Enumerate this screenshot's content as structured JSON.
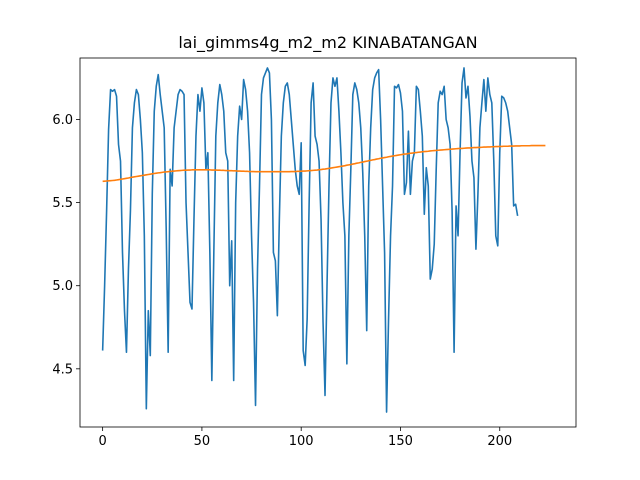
{
  "chart_data": {
    "type": "line",
    "title": "lai_gimms4g_m2_m2 KINABATANGAN",
    "xlabel": "",
    "ylabel": "",
    "xlim": [
      -11.4,
      238.4
    ],
    "ylim": [
      4.15,
      6.37
    ],
    "x_ticks": [
      0,
      50,
      100,
      150,
      200
    ],
    "y_ticks": [
      4.5,
      5.0,
      5.5,
      6.0
    ],
    "x_tick_labels": [
      "0",
      "50",
      "100",
      "150",
      "200"
    ],
    "y_tick_labels": [
      "4.5",
      "5.0",
      "5.5",
      "6.0"
    ],
    "grid": false,
    "legend": "none",
    "series": [
      {
        "color": "#1f77b4",
        "values": [
          4.61,
          5.0,
          5.45,
          5.94,
          6.18,
          6.17,
          6.18,
          6.14,
          5.85,
          5.75,
          5.2,
          4.85,
          4.6,
          5.1,
          5.45,
          5.95,
          6.1,
          6.18,
          6.15,
          6.0,
          5.8,
          5.3,
          4.26,
          4.85,
          4.58,
          5.55,
          6.05,
          6.2,
          6.27,
          6.15,
          6.05,
          5.95,
          5.35,
          4.6,
          5.7,
          5.6,
          5.95,
          6.05,
          6.15,
          6.18,
          6.17,
          6.15,
          5.5,
          5.2,
          4.9,
          4.86,
          5.4,
          5.9,
          6.15,
          6.05,
          6.19,
          6.1,
          5.7,
          5.8,
          5.2,
          4.43,
          5.2,
          5.9,
          6.1,
          6.21,
          6.15,
          6.05,
          5.8,
          5.75,
          5.0,
          5.27,
          4.43,
          5.5,
          5.9,
          6.08,
          6.0,
          6.24,
          6.18,
          6.05,
          5.8,
          5.3,
          4.9,
          4.28,
          5.1,
          5.6,
          6.15,
          6.25,
          6.28,
          6.31,
          6.28,
          6.0,
          5.2,
          5.15,
          4.82,
          5.4,
          5.9,
          6.1,
          6.2,
          6.22,
          6.15,
          6.0,
          5.85,
          5.7,
          5.6,
          5.55,
          5.86,
          4.61,
          4.52,
          4.8,
          5.5,
          6.1,
          6.22,
          5.9,
          5.85,
          5.75,
          5.4,
          4.78,
          4.34,
          5.0,
          5.6,
          6.1,
          6.25,
          6.2,
          6.25,
          6.05,
          5.8,
          5.5,
          5.3,
          4.53,
          5.3,
          5.7,
          6.15,
          6.22,
          6.18,
          6.1,
          5.95,
          5.68,
          5.3,
          4.73,
          5.6,
          5.95,
          6.18,
          6.25,
          6.28,
          6.3,
          6.0,
          5.6,
          5.2,
          4.24,
          4.8,
          5.3,
          5.6,
          6.2,
          6.19,
          6.21,
          6.16,
          6.05,
          5.55,
          5.62,
          5.93,
          5.55,
          5.75,
          5.8,
          6.2,
          6.18,
          6.05,
          5.9,
          5.43,
          5.71,
          5.6,
          5.04,
          5.1,
          5.25,
          5.7,
          6.1,
          6.17,
          6.15,
          6.2,
          6.0,
          5.95,
          5.85,
          5.45,
          4.6,
          5.48,
          5.3,
          5.8,
          6.22,
          6.31,
          6.13,
          6.2,
          6.02,
          5.75,
          5.65,
          5.22,
          5.55,
          5.95,
          6.1,
          6.24,
          6.05,
          6.25,
          6.15,
          6.1,
          5.75,
          5.3,
          5.24,
          5.8,
          6.14,
          6.13,
          6.1,
          6.05,
          5.95,
          5.85,
          5.48,
          5.49,
          5.42
        ]
      },
      {
        "color": "#ff7f0e",
        "values": [
          5.628,
          5.629,
          5.63,
          5.631,
          5.632,
          5.633,
          5.634,
          5.636,
          5.638,
          5.64,
          5.642,
          5.644,
          5.646,
          5.648,
          5.651,
          5.653,
          5.655,
          5.657,
          5.659,
          5.661,
          5.663,
          5.665,
          5.667,
          5.669,
          5.671,
          5.673,
          5.675,
          5.677,
          5.679,
          5.68,
          5.682,
          5.684,
          5.685,
          5.686,
          5.688,
          5.689,
          5.69,
          5.691,
          5.692,
          5.693,
          5.694,
          5.695,
          5.695,
          5.696,
          5.696,
          5.697,
          5.697,
          5.697,
          5.697,
          5.697,
          5.697,
          5.697,
          5.697,
          5.697,
          5.697,
          5.696,
          5.696,
          5.696,
          5.695,
          5.695,
          5.694,
          5.694,
          5.693,
          5.693,
          5.692,
          5.692,
          5.691,
          5.691,
          5.69,
          5.69,
          5.689,
          5.689,
          5.688,
          5.688,
          5.687,
          5.687,
          5.687,
          5.686,
          5.686,
          5.686,
          5.686,
          5.686,
          5.686,
          5.686,
          5.686,
          5.686,
          5.686,
          5.686,
          5.686,
          5.686,
          5.686,
          5.686,
          5.686,
          5.686,
          5.686,
          5.687,
          5.687,
          5.687,
          5.688,
          5.688,
          5.689,
          5.69,
          5.69,
          5.691,
          5.692,
          5.693,
          5.694,
          5.695,
          5.696,
          5.698,
          5.699,
          5.701,
          5.702,
          5.704,
          5.706,
          5.708,
          5.71,
          5.712,
          5.714,
          5.716,
          5.718,
          5.72,
          5.722,
          5.725,
          5.727,
          5.729,
          5.732,
          5.734,
          5.737,
          5.739,
          5.742,
          5.744,
          5.747,
          5.749,
          5.752,
          5.754,
          5.757,
          5.759,
          5.762,
          5.764,
          5.767,
          5.769,
          5.771,
          5.773,
          5.776,
          5.778,
          5.78,
          5.782,
          5.784,
          5.786,
          5.788,
          5.79,
          5.792,
          5.793,
          5.795,
          5.797,
          5.798,
          5.8,
          5.801,
          5.803,
          5.804,
          5.806,
          5.807,
          5.808,
          5.809,
          5.811,
          5.812,
          5.813,
          5.814,
          5.815,
          5.816,
          5.817,
          5.818,
          5.819,
          5.82,
          5.821,
          5.822,
          5.823,
          5.824,
          5.825,
          5.826,
          5.826,
          5.827,
          5.828,
          5.829,
          5.829,
          5.83,
          5.831,
          5.831,
          5.832,
          5.832,
          5.833,
          5.834,
          5.834,
          5.835,
          5.835,
          5.836,
          5.836,
          5.837,
          5.837,
          5.838,
          5.838,
          5.839,
          5.839,
          5.839,
          5.84,
          5.84,
          5.84,
          5.841,
          5.841,
          5.841,
          5.842,
          5.842,
          5.842,
          5.842,
          5.842,
          5.843,
          5.843,
          5.843,
          5.843,
          5.843,
          5.843,
          5.843,
          5.843
        ]
      }
    ]
  }
}
